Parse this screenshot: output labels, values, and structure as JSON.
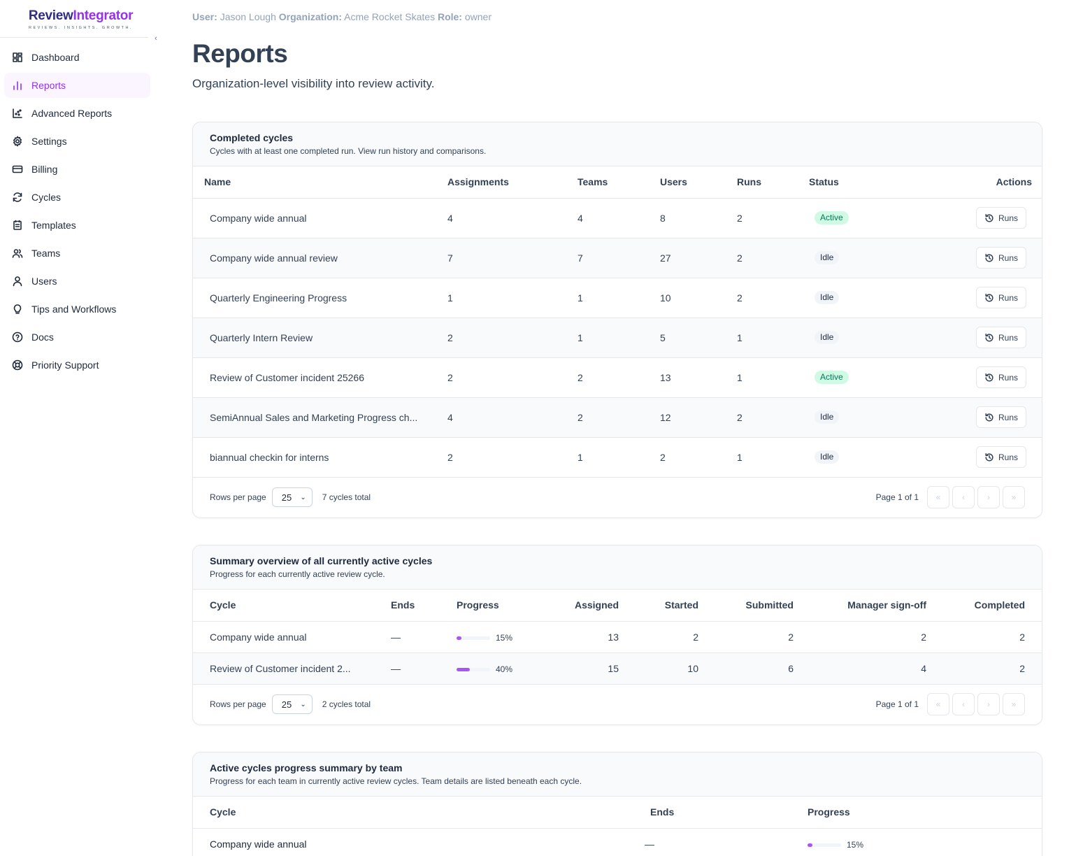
{
  "brand": {
    "part1": "Review",
    "part2": "Integrator",
    "tagline": "REVIEWS. INSIGHTS. GROWTH."
  },
  "sidebar": {
    "collapse_icon": "chevron-left-icon",
    "items": [
      {
        "label": "Dashboard",
        "icon": "dashboard-icon"
      },
      {
        "label": "Reports",
        "icon": "bar-chart-icon",
        "active": true
      },
      {
        "label": "Advanced Reports",
        "icon": "scatter-chart-icon"
      },
      {
        "label": "Settings",
        "icon": "gear-icon"
      },
      {
        "label": "Billing",
        "icon": "credit-card-icon"
      },
      {
        "label": "Cycles",
        "icon": "refresh-icon"
      },
      {
        "label": "Templates",
        "icon": "template-icon"
      },
      {
        "label": "Teams",
        "icon": "users-icon"
      },
      {
        "label": "Users",
        "icon": "user-icon"
      },
      {
        "label": "Tips and Workflows",
        "icon": "lightbulb-icon"
      },
      {
        "label": "Docs",
        "icon": "help-circle-icon"
      },
      {
        "label": "Priority Support",
        "icon": "life-buoy-icon"
      }
    ]
  },
  "header": {
    "user_label": "User:",
    "user": "Jason Lough",
    "org_label": "Organization:",
    "org": "Acme Rocket Skates",
    "role_label": "Role:",
    "role": "owner",
    "title": "Reports",
    "subtitle": "Organization-level visibility into review activity."
  },
  "completed": {
    "title": "Completed cycles",
    "desc": "Cycles with at least one completed run. View run history and comparisons.",
    "columns": [
      "Name",
      "Assignments",
      "Teams",
      "Users",
      "Runs",
      "Status",
      "Actions"
    ],
    "action_label": "Runs",
    "rows": [
      {
        "name": "Company wide annual",
        "assignments": "4",
        "teams": "4",
        "users": "8",
        "runs": "2",
        "status": "Active"
      },
      {
        "name": "Company wide annual review",
        "assignments": "7",
        "teams": "7",
        "users": "27",
        "runs": "2",
        "status": "Idle"
      },
      {
        "name": "Quarterly Engineering Progress",
        "assignments": "1",
        "teams": "1",
        "users": "10",
        "runs": "2",
        "status": "Idle"
      },
      {
        "name": "Quarterly Intern Review",
        "assignments": "2",
        "teams": "1",
        "users": "5",
        "runs": "1",
        "status": "Idle"
      },
      {
        "name": "Review of Customer incident 25266",
        "assignments": "2",
        "teams": "2",
        "users": "13",
        "runs": "1",
        "status": "Active"
      },
      {
        "name": "SemiAnnual Sales and Marketing Progress ch...",
        "assignments": "4",
        "teams": "2",
        "users": "12",
        "runs": "2",
        "status": "Idle"
      },
      {
        "name": "biannual checkin for interns",
        "assignments": "2",
        "teams": "1",
        "users": "2",
        "runs": "1",
        "status": "Idle"
      }
    ],
    "footer": {
      "rows_per_page_label": "Rows per page",
      "rows_per_page": "25",
      "total": "7 cycles total",
      "page": "Page 1 of 1"
    }
  },
  "summary": {
    "title": "Summary overview of all currently active cycles",
    "desc": "Progress for each currently active review cycle.",
    "columns": [
      "Cycle",
      "Ends",
      "Progress",
      "Assigned",
      "Started",
      "Submitted",
      "Manager sign-off",
      "Completed"
    ],
    "rows": [
      {
        "cycle": "Company wide annual",
        "ends": "—",
        "progress": 15,
        "progress_label": "15%",
        "assigned": "13",
        "started": "2",
        "submitted": "2",
        "signoff": "2",
        "completed": "2"
      },
      {
        "cycle": "Review of Customer incident 2...",
        "ends": "—",
        "progress": 40,
        "progress_label": "40%",
        "assigned": "15",
        "started": "10",
        "submitted": "6",
        "signoff": "4",
        "completed": "2"
      }
    ],
    "footer": {
      "rows_per_page_label": "Rows per page",
      "rows_per_page": "25",
      "total": "2 cycles total",
      "page": "Page 1 of 1"
    }
  },
  "by_team": {
    "title": "Active cycles progress summary by team",
    "desc": "Progress for each team in currently active review cycles. Team details are listed beneath each cycle.",
    "columns": [
      "Cycle",
      "Ends",
      "Progress"
    ],
    "rows": [
      {
        "cycle": "Company wide annual",
        "ends": "—",
        "progress": 15,
        "progress_label": "15%"
      }
    ]
  },
  "colors": {
    "accent": "#9333ea",
    "active_badge_bg": "#d1fae5",
    "active_badge_text": "#047857",
    "progress_fill": "#a855f7"
  }
}
